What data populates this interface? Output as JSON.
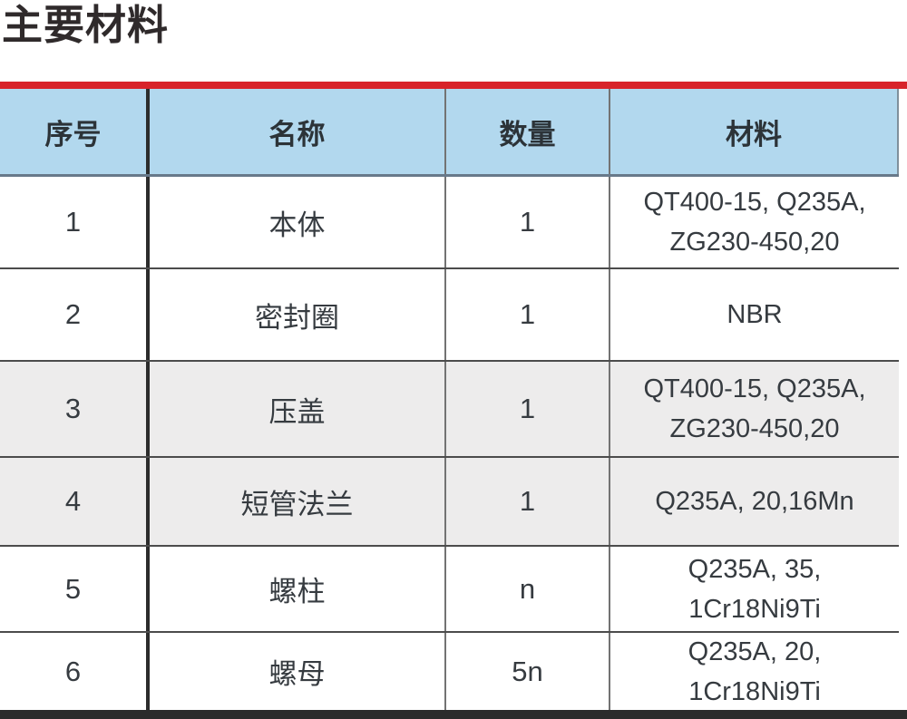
{
  "page_title": "主要材料",
  "colors": {
    "accent_red": "#d8232a",
    "header_bg": "#b2d8ee",
    "row_alt_bg": "#edecec",
    "bottom_bar": "#2b2b2b"
  },
  "table": {
    "headers": [
      "序号",
      "名称",
      "数量",
      "材料"
    ],
    "rows": [
      {
        "no": "1",
        "name": "本体",
        "qty": "1",
        "material_line1": "QT400-15, Q235A,",
        "material_line2": "ZG230-450,20"
      },
      {
        "no": "2",
        "name": "密封圈",
        "qty": "1",
        "material_line1": "NBR",
        "material_line2": ""
      },
      {
        "no": "3",
        "name": "压盖",
        "qty": "1",
        "material_line1": "QT400-15, Q235A,",
        "material_line2": "ZG230-450,20"
      },
      {
        "no": "4",
        "name": "短管法兰",
        "qty": "1",
        "material_line1": "Q235A, 20,16Mn",
        "material_line2": ""
      },
      {
        "no": "5",
        "name": "螺柱",
        "qty": "n",
        "material_line1": "Q235A, 35,",
        "material_line2": "1Cr18Ni9Ti"
      },
      {
        "no": "6",
        "name": "螺母",
        "qty": "5n",
        "material_line1": "Q235A, 20,",
        "material_line2": "1Cr18Ni9Ti"
      }
    ]
  }
}
